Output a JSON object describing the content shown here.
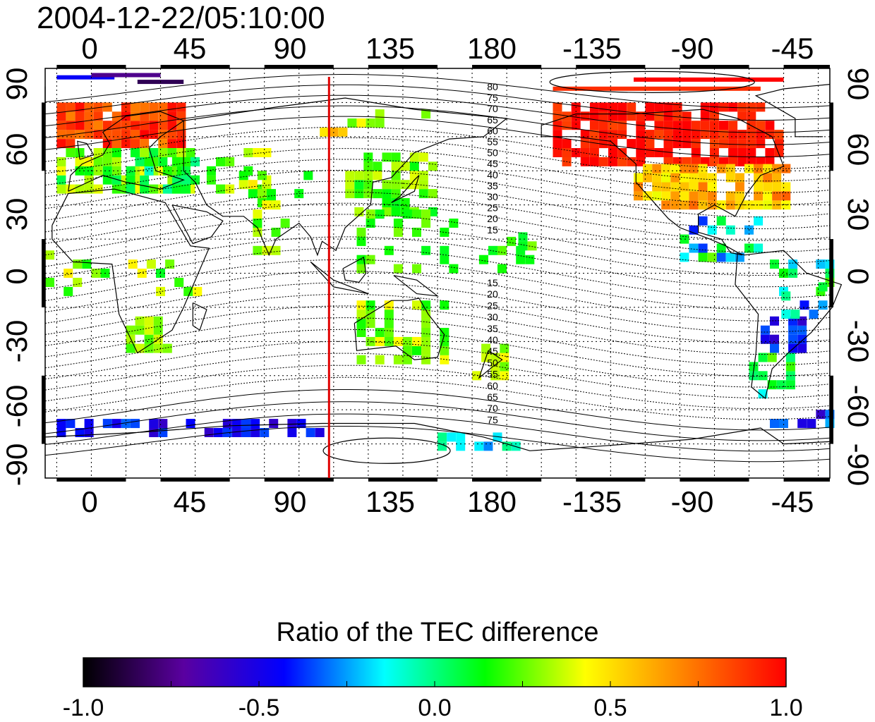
{
  "title": "2004-12-22/05:10:00",
  "map": {
    "top_lon_labels": [
      "0",
      "45",
      "90",
      "135",
      "180",
      "-135",
      "-90",
      "-45"
    ],
    "bottom_lon_labels": [
      "0",
      "45",
      "90",
      "135",
      "180",
      "-135",
      "-90",
      "-45"
    ],
    "left_lat_labels": [
      "90",
      "60",
      "30",
      "0",
      "-30",
      "-60",
      "-90"
    ],
    "right_lat_labels": [
      "90",
      "60",
      "30",
      "0",
      "-30",
      "-60",
      "-90"
    ],
    "lon_range": [
      -20,
      320
    ],
    "lat_range": [
      -90,
      90
    ],
    "marker_line": {
      "lon": 103,
      "color": "#e00000"
    },
    "contour_labels_north": [
      "80",
      "75",
      "70",
      "65",
      "60",
      "55",
      "50",
      "45",
      "40",
      "35",
      "30",
      "25",
      "20",
      "15"
    ],
    "contour_labels_south": [
      "15",
      "20",
      "25",
      "30",
      "35",
      "40",
      "45",
      "50",
      "55",
      "60",
      "65",
      "70",
      "75"
    ]
  },
  "colorbar": {
    "title": "Ratio of the TEC difference",
    "tick_labels": [
      "-1.0",
      "-0.5",
      "0.0",
      "0.5",
      "1.0"
    ],
    "range": [
      -1.0,
      1.0
    ],
    "stops": [
      "#000000",
      "#5a00a0",
      "#0000ff",
      "#00ffff",
      "#00ff00",
      "#ffff00",
      "#ff8000",
      "#ff0000"
    ]
  }
}
